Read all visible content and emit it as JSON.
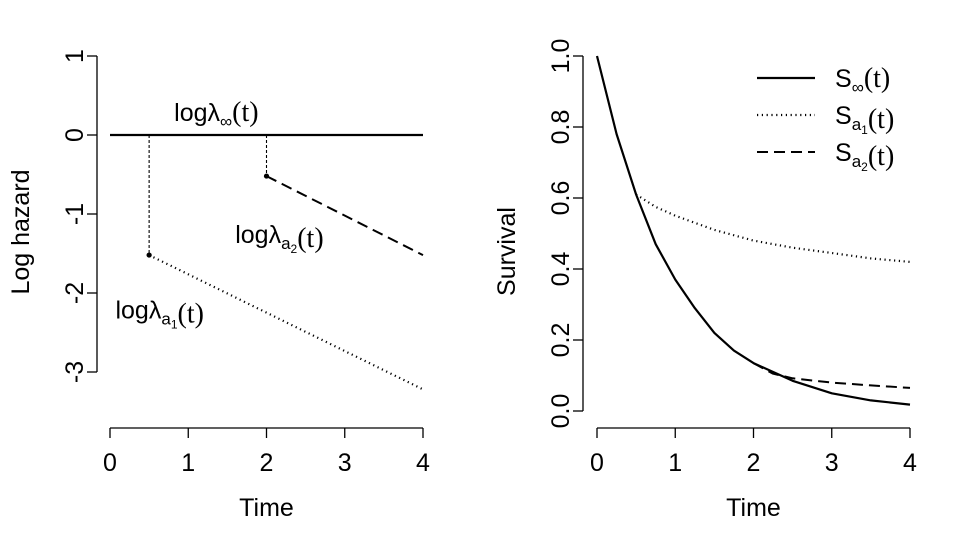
{
  "chart_data": [
    {
      "type": "line",
      "panel": "left",
      "xlabel": "Time",
      "ylabel": "Log hazard",
      "xlim": [
        0,
        4
      ],
      "ylim": [
        -3,
        1
      ],
      "xticks": [
        "0",
        "1",
        "2",
        "3",
        "4"
      ],
      "yticks": [
        "-3",
        "-2",
        "-1",
        "0",
        "1"
      ],
      "series": [
        {
          "name": "log λ∞(t)",
          "style": "solid",
          "x": [
            0,
            4
          ],
          "y": [
            0,
            0
          ]
        },
        {
          "name": "log λa2(t)",
          "style": "dashed",
          "x": [
            2,
            4
          ],
          "y": [
            -0.52,
            -1.52
          ]
        },
        {
          "name": "log λa1(t)",
          "style": "dotted",
          "x": [
            0.5,
            4
          ],
          "y": [
            -1.52,
            -3.22
          ]
        }
      ],
      "guides": [
        {
          "x": 0.5,
          "from": 0,
          "to": -1.52
        },
        {
          "x": 2,
          "from": 0,
          "to": -0.52
        }
      ],
      "markers": [
        {
          "x": 0.5,
          "y": -1.52
        },
        {
          "x": 2,
          "y": -0.52
        }
      ],
      "annotations": [
        {
          "base": "log",
          "greek": "λ",
          "sub": "∞",
          "subsub": "",
          "paren": "(t)",
          "x": 0.82,
          "y": 0.18
        },
        {
          "base": "log",
          "greek": "λ",
          "sub": "a",
          "subsub": "2",
          "paren": "(t)",
          "x": 1.6,
          "y": -1.37
        },
        {
          "base": "log",
          "greek": "λ",
          "sub": "a",
          "subsub": "1",
          "paren": "(t)",
          "x": 0.07,
          "y": -2.32
        }
      ]
    },
    {
      "type": "line",
      "panel": "right",
      "xlabel": "Time",
      "ylabel": "Survival",
      "xlim": [
        0,
        4
      ],
      "ylim": [
        0,
        1
      ],
      "xticks": [
        "0",
        "1",
        "2",
        "3",
        "4"
      ],
      "yticks": [
        "0.0",
        "0.2",
        "0.4",
        "0.6",
        "0.8",
        "1.0"
      ],
      "series": [
        {
          "name": "S∞(t)",
          "style": "solid",
          "x": [
            0,
            0.25,
            0.5,
            0.75,
            1,
            1.25,
            1.5,
            1.75,
            2,
            2.5,
            3,
            3.5,
            4
          ],
          "y": [
            1,
            0.78,
            0.61,
            0.47,
            0.37,
            0.29,
            0.22,
            0.17,
            0.135,
            0.085,
            0.05,
            0.03,
            0.018
          ]
        },
        {
          "name": "Sa1(t)",
          "style": "dotted",
          "x": [
            0.5,
            0.75,
            1,
            1.5,
            2,
            2.5,
            3,
            3.5,
            4
          ],
          "y": [
            0.61,
            0.575,
            0.55,
            0.51,
            0.48,
            0.46,
            0.445,
            0.43,
            0.42
          ]
        },
        {
          "name": "Sa2(t)",
          "style": "dashed",
          "x": [
            2,
            2.25,
            2.5,
            3,
            3.5,
            4
          ],
          "y": [
            0.135,
            0.105,
            0.092,
            0.08,
            0.072,
            0.065
          ]
        }
      ],
      "legend": {
        "position": "top-right",
        "entries": [
          {
            "label": "S",
            "sub": "∞",
            "subsub": "",
            "paren": "(t)",
            "style": "solid"
          },
          {
            "label": "S",
            "sub": "a",
            "subsub": "1",
            "paren": "(t)",
            "style": "dotted"
          },
          {
            "label": "S",
            "sub": "a",
            "subsub": "2",
            "paren": "(t)",
            "style": "dashed"
          }
        ]
      }
    }
  ]
}
